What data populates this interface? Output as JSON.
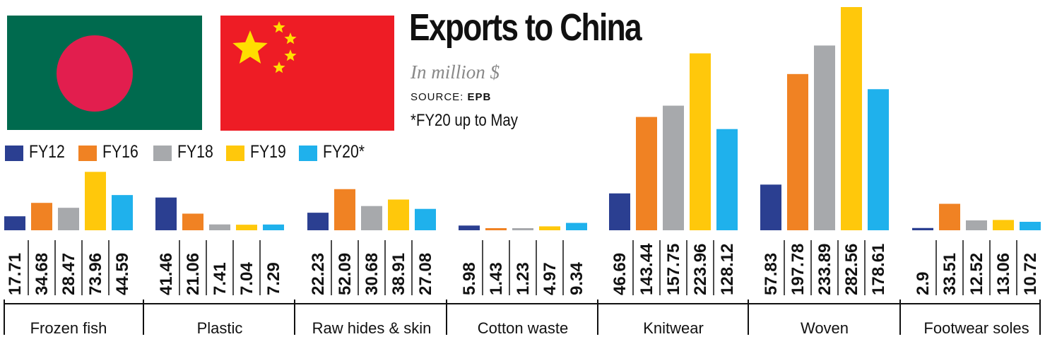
{
  "title": "Exports to China",
  "subtitle": "In million $",
  "source_label": "SOURCE:",
  "source_value": "EPB",
  "note": "*FY20 up to May",
  "flags": [
    "bangladesh-flag",
    "china-flag"
  ],
  "colors": {
    "FY12": "#2b3f91",
    "FY16": "#f08223",
    "FY18": "#a7a9ac",
    "FY19": "#ffc80b",
    "FY20*": "#1fb1ec"
  },
  "chart_data": {
    "type": "bar",
    "title": "Exports to China",
    "subtitle": "In million $",
    "categories": [
      "Frozen fish",
      "Plastic",
      "Raw hides & skin",
      "Cotton waste",
      "Knitwear",
      "Woven",
      "Footwear soles"
    ],
    "series": [
      {
        "name": "FY12",
        "color": "#2b3f91",
        "values": [
          17.71,
          41.46,
          22.23,
          5.98,
          46.69,
          57.83,
          2.9
        ],
        "labels": [
          "17.71",
          "41.46",
          "22.23",
          "5.98",
          "46.69",
          "57.83",
          "2.9"
        ]
      },
      {
        "name": "FY16",
        "color": "#f08223",
        "values": [
          34.68,
          21.06,
          52.09,
          1.43,
          143.44,
          197.78,
          33.51
        ],
        "labels": [
          "34.68",
          "21.06",
          "52.09",
          "1.43",
          "143.44",
          "197.78",
          "33.51"
        ]
      },
      {
        "name": "FY18",
        "color": "#a7a9ac",
        "values": [
          28.47,
          7.41,
          30.68,
          1.23,
          157.75,
          233.89,
          12.52
        ],
        "labels": [
          "28.47",
          "7.41",
          "30.68",
          "1.23",
          "157.75",
          "233.89",
          "12.52"
        ]
      },
      {
        "name": "FY19",
        "color": "#ffc80b",
        "values": [
          73.96,
          7.04,
          38.91,
          4.97,
          223.96,
          282.56,
          13.06
        ],
        "labels": [
          "73.96",
          "7.04",
          "38.91",
          "4.97",
          "223.96",
          "282.56",
          "13.06"
        ]
      },
      {
        "name": "FY20*",
        "color": "#1fb1ec",
        "values": [
          44.59,
          7.29,
          27.08,
          9.34,
          128.12,
          178.61,
          10.72
        ],
        "labels": [
          "44.59",
          "7.29",
          "27.08",
          "9.34",
          "128.12",
          "178.61",
          "10.72"
        ]
      }
    ],
    "xlabel": "",
    "ylabel": "",
    "grid": false,
    "legend_position": "top-left"
  }
}
